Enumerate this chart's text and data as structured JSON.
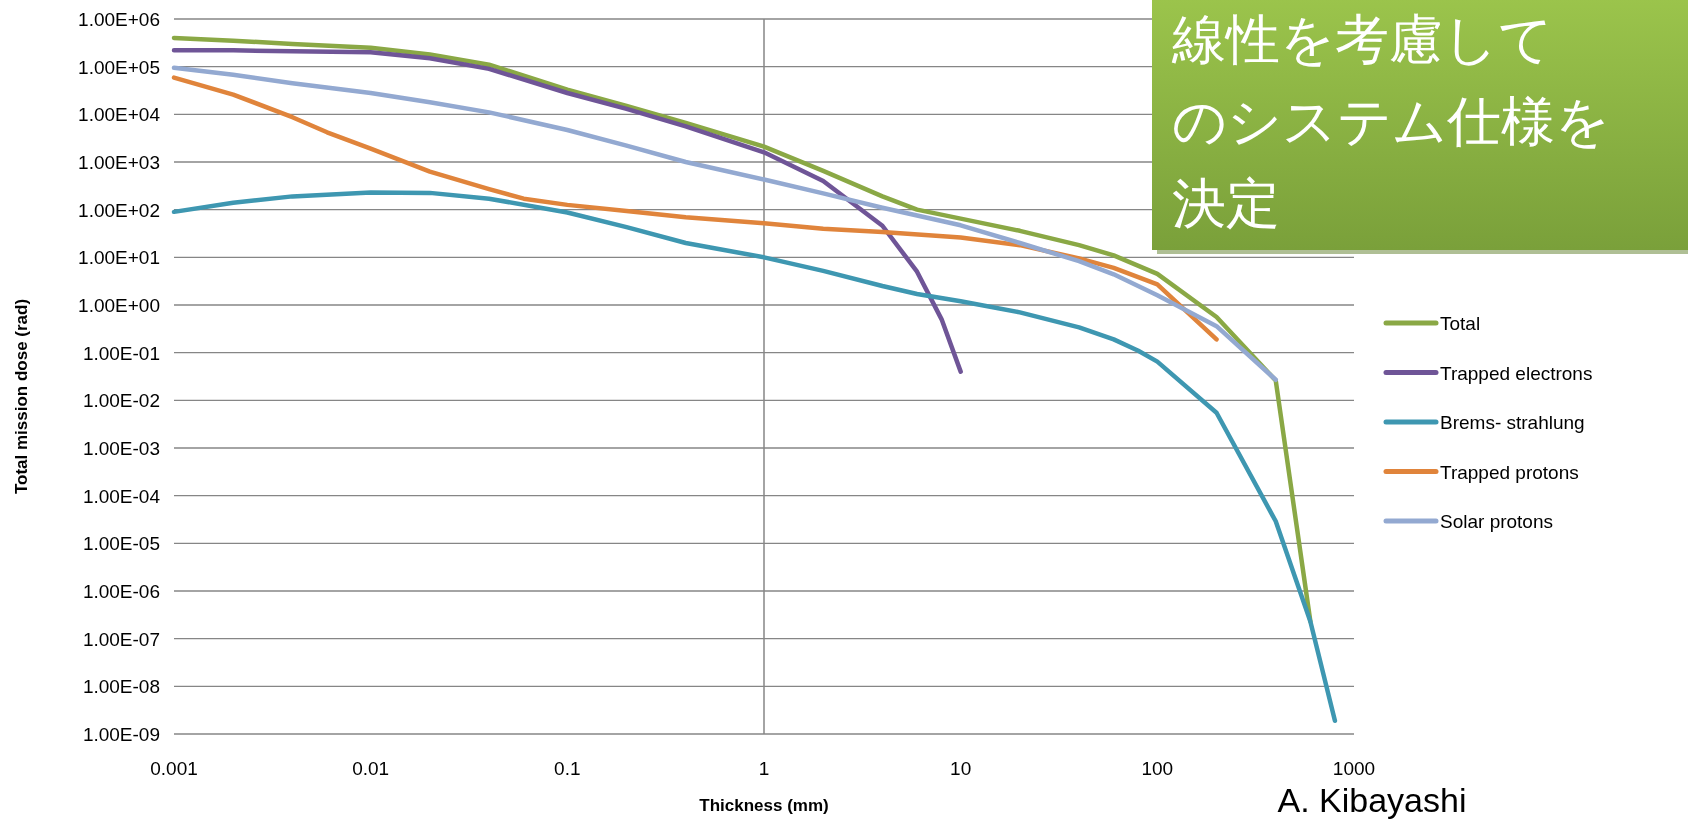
{
  "chart_data": {
    "type": "line",
    "xlabel": "Thickness (mm)",
    "ylabel": "Total mission dose (rad)",
    "log": "xy",
    "grid": "y",
    "legend": "right",
    "xlim": [
      0.001,
      1000
    ],
    "ylim": [
      1e-09,
      1000000.0
    ],
    "xticks": [
      0.001,
      0.01,
      0.1,
      1,
      10,
      100,
      1000
    ],
    "yticks": [
      {
        "value": 1000000.0,
        "label": "1.00E+06"
      },
      {
        "value": 100000.0,
        "label": "1.00E+05"
      },
      {
        "value": 10000.0,
        "label": "1.00E+04"
      },
      {
        "value": 1000.0,
        "label": "1.00E+03"
      },
      {
        "value": 100.0,
        "label": "1.00E+02"
      },
      {
        "value": 10.0,
        "label": "1.00E+01"
      },
      {
        "value": 1,
        "label": "1.00E+00"
      },
      {
        "value": 0.1,
        "label": "1.00E-01"
      },
      {
        "value": 0.01,
        "label": "1.00E-02"
      },
      {
        "value": 0.001,
        "label": "1.00E-03"
      },
      {
        "value": 0.0001,
        "label": "1.00E-04"
      },
      {
        "value": 1e-05,
        "label": "1.00E-05"
      },
      {
        "value": 1e-06,
        "label": "1.00E-06"
      },
      {
        "value": 1e-07,
        "label": "1.00E-07"
      },
      {
        "value": 1e-08,
        "label": "1.00E-08"
      },
      {
        "value": 1e-09,
        "label": "1.00E-09"
      }
    ],
    "ref_lines": [
      {
        "axis": "x",
        "value": 1,
        "color": "#868686"
      }
    ],
    "series": [
      {
        "name": "Total",
        "color": "#8aa845",
        "x": [
          0.001,
          0.002,
          0.004,
          0.01,
          0.02,
          0.04,
          0.1,
          0.2,
          0.4,
          1,
          2,
          4,
          6,
          10,
          20,
          40,
          60,
          100,
          200,
          400,
          600
        ],
        "values": [
          400000.0,
          350000.0,
          300000.0,
          250000.0,
          180000.0,
          110000.0,
          33000.0,
          15000.0,
          6600.0,
          2100.0,
          650,
          190,
          100,
          65,
          36,
          18,
          11,
          4.5,
          0.56,
          0.026,
          2.3e-07
        ]
      },
      {
        "name": "Trapped electrons",
        "color": "#6f5597",
        "x": [
          0.001,
          0.002,
          0.004,
          0.01,
          0.02,
          0.04,
          0.1,
          0.2,
          0.4,
          1,
          2,
          4,
          6,
          8,
          10
        ],
        "values": [
          220000.0,
          220000.0,
          210000.0,
          200000.0,
          150000.0,
          90000.0,
          28000.0,
          13000.0,
          5600.0,
          1600.0,
          400,
          46,
          5,
          0.5,
          0.04
        ]
      },
      {
        "name": "Brems- strahlung",
        "color": "#3e97b1",
        "x": [
          0.001,
          0.002,
          0.004,
          0.01,
          0.02,
          0.04,
          0.1,
          0.2,
          0.4,
          1,
          2,
          4,
          6,
          10,
          20,
          40,
          60,
          80,
          100,
          200,
          400,
          600,
          800
        ],
        "values": [
          90,
          140,
          190,
          230,
          225,
          170,
          87,
          43,
          20,
          10,
          5.2,
          2.5,
          1.7,
          1.2,
          0.7,
          0.34,
          0.19,
          0.11,
          0.065,
          0.0055,
          2.9e-05,
          2.3e-07,
          1.9e-09
        ]
      },
      {
        "name": "Trapped protons",
        "color": "#e0843b",
        "x": [
          0.001,
          0.002,
          0.004,
          0.006,
          0.01,
          0.02,
          0.04,
          0.06,
          0.1,
          0.2,
          0.4,
          1,
          2,
          4,
          10,
          20,
          40,
          60,
          100,
          200
        ],
        "values": [
          59000.0,
          26000.0,
          8700.0,
          4200.0,
          1900.0,
          630,
          270,
          170,
          126,
          94,
          69,
          52,
          40,
          34,
          26,
          18,
          9.5,
          6,
          2.7,
          0.19
        ]
      },
      {
        "name": "Solar protons",
        "color": "#93a9d1",
        "x": [
          0.001,
          0.002,
          0.004,
          0.01,
          0.02,
          0.04,
          0.1,
          0.2,
          0.4,
          1,
          2,
          4,
          10,
          20,
          40,
          60,
          100,
          200,
          400
        ],
        "values": [
          95000.0,
          68000.0,
          45000.0,
          28000.0,
          18000.0,
          11000.0,
          4700.0,
          2200.0,
          1000,
          430,
          220,
          110,
          47,
          20,
          8.3,
          4.4,
          1.6,
          0.36,
          0.027
        ]
      }
    ],
    "annotations": [
      "線性を考慮して",
      "のシステム仕様を",
      "決定",
      "A. Kibayashi"
    ]
  }
}
